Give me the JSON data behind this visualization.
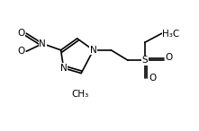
{
  "bg_color": "#ffffff",
  "line_color": "#000000",
  "line_width": 1.2,
  "font_size": 7.5,
  "figsize": [
    2.21,
    1.46
  ],
  "dpi": 100,
  "xlim": [
    0.0,
    1.45
  ],
  "ylim": [
    0.05,
    1.05
  ]
}
